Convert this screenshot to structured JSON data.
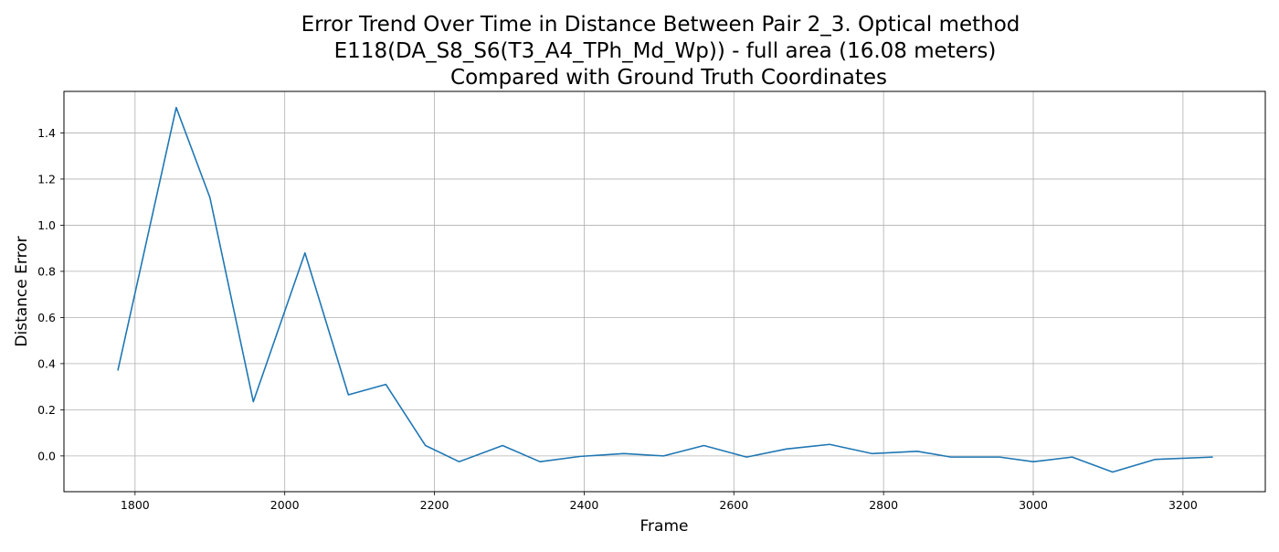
{
  "chart_data": {
    "type": "line",
    "title_lines": [
      "Error Trend Over Time in Distance Between Pair 2_3. Optical method",
      "E118(DA_S8_S6(T3_A4_TPh_Md_Wp)) - full area (16.08 meters)",
      "Compared with Ground Truth Coordinates"
    ],
    "xlabel": "Frame",
    "ylabel": "Distance Error",
    "xlim": [
      1705,
      3310
    ],
    "ylim": [
      -0.155,
      1.58
    ],
    "xticks": [
      1800,
      2000,
      2200,
      2400,
      2600,
      2800,
      3000,
      3200
    ],
    "yticks": [
      0.0,
      0.2,
      0.4,
      0.6,
      0.8,
      1.0,
      1.2,
      1.4
    ],
    "ytick_labels": [
      "0.0",
      "0.2",
      "0.4",
      "0.6",
      "0.8",
      "1.0",
      "1.2",
      "1.4"
    ],
    "grid": true,
    "line_color": "#1f77b4",
    "series": [
      {
        "x": [
          1777,
          1855,
          1900,
          1958,
          2027,
          2085,
          2135,
          2188,
          2233,
          2291,
          2341,
          2395,
          2453,
          2506,
          2560,
          2617,
          2670,
          2728,
          2785,
          2845,
          2890,
          2955,
          3000,
          3052,
          3106,
          3163,
          3240
        ],
        "y": [
          0.37,
          1.51,
          1.12,
          0.235,
          0.88,
          0.265,
          0.31,
          0.045,
          -0.025,
          0.045,
          -0.025,
          -0.002,
          0.01,
          0.0,
          0.045,
          -0.005,
          0.03,
          0.05,
          0.01,
          0.02,
          -0.005,
          -0.005,
          -0.025,
          -0.005,
          -0.07,
          -0.015,
          -0.005
        ]
      }
    ]
  }
}
